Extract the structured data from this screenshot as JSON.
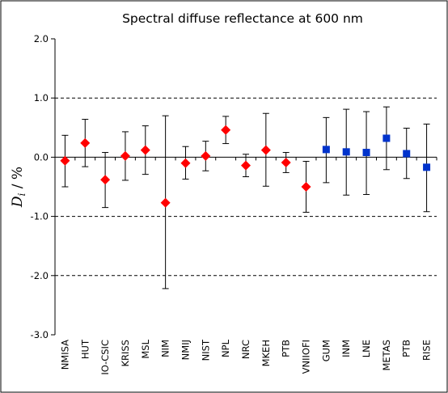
{
  "chart_data": {
    "type": "scatter",
    "title": "Spectral diffuse reflectance at 600 nm",
    "ylabel": {
      "symbol": "D",
      "subscript": "i",
      "unit": " / %"
    },
    "ylim": [
      -3.0,
      2.0
    ],
    "yticks": [
      2.0,
      1.0,
      0.0,
      -1.0,
      -2.0,
      -3.0
    ],
    "ytick_labels": [
      "2.0",
      "1.0",
      "0.0",
      "-1.0",
      "-2.0",
      "-3.0"
    ],
    "grid": "dashed horizontal at 1.0, -1.0, -2.0",
    "categories": [
      "NMISA",
      "HUT",
      "IO-CSIC",
      "KRISS",
      "MSL",
      "NIM",
      "NMIJ",
      "NIST",
      "NPL",
      "NRC",
      "MKEH",
      "PTB",
      "VNIIOFI",
      "GUM",
      "INM",
      "LNE",
      "METAS",
      "PTB",
      "RISE"
    ],
    "series": [
      {
        "marker": "diamond",
        "color": "#ff0000",
        "points": [
          {
            "x": "NMISA",
            "y": -0.06,
            "low": -0.5,
            "high": 0.37
          },
          {
            "x": "HUT",
            "y": 0.24,
            "low": -0.16,
            "high": 0.64
          },
          {
            "x": "IO-CSIC",
            "y": -0.38,
            "low": -0.85,
            "high": 0.08
          },
          {
            "x": "KRISS",
            "y": 0.02,
            "low": -0.39,
            "high": 0.43
          },
          {
            "x": "MSL",
            "y": 0.12,
            "low": -0.29,
            "high": 0.53
          },
          {
            "x": "NIM",
            "y": -0.77,
            "low": -2.22,
            "high": 0.7
          },
          {
            "x": "NMIJ",
            "y": -0.1,
            "low": -0.37,
            "high": 0.18
          },
          {
            "x": "NIST",
            "y": 0.02,
            "low": -0.23,
            "high": 0.27
          },
          {
            "x": "NPL",
            "y": 0.46,
            "low": 0.23,
            "high": 0.69
          },
          {
            "x": "NRC",
            "y": -0.14,
            "low": -0.33,
            "high": 0.05
          },
          {
            "x": "MKEH",
            "y": 0.12,
            "low": -0.49,
            "high": 0.74
          },
          {
            "x": "PTB",
            "y": -0.09,
            "low": -0.26,
            "high": 0.08
          },
          {
            "x": "VNIIOFI",
            "y": -0.5,
            "low": -0.93,
            "high": -0.07
          }
        ]
      },
      {
        "marker": "square",
        "color": "#0033cc",
        "points": [
          {
            "x": "GUM",
            "y": 0.13,
            "low": -0.43,
            "high": 0.67
          },
          {
            "x": "INM",
            "y": 0.09,
            "low": -0.64,
            "high": 0.81
          },
          {
            "x": "LNE",
            "y": 0.08,
            "low": -0.63,
            "high": 0.77
          },
          {
            "x": "METAS",
            "y": 0.32,
            "low": -0.21,
            "high": 0.85
          },
          {
            "x": "PTB",
            "y": 0.06,
            "low": -0.36,
            "high": 0.49
          },
          {
            "x": "RISE",
            "y": -0.17,
            "low": -0.92,
            "high": 0.56
          }
        ]
      }
    ]
  }
}
